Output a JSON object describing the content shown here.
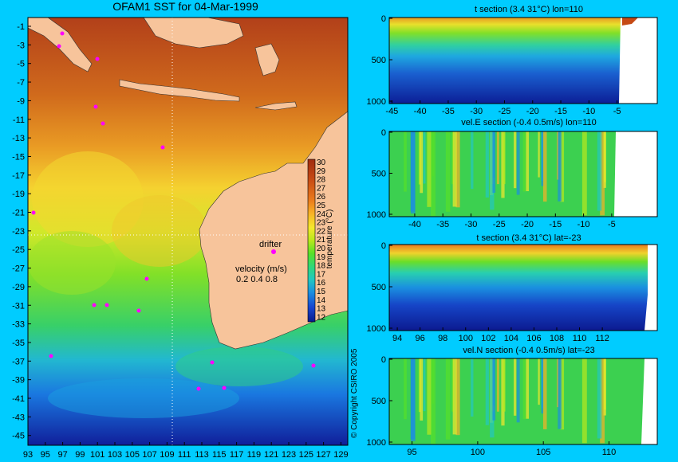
{
  "map": {
    "title": "OFAM1 SST for 04-Mar-1999",
    "lat_ticks": [
      "-1",
      "-3",
      "-5",
      "-7",
      "-9",
      "-11",
      "-13",
      "-15",
      "-17",
      "-19",
      "-21",
      "-23",
      "-25",
      "-27",
      "-29",
      "-31",
      "-33",
      "-35",
      "-37",
      "-39",
      "-41",
      "-43",
      "-45"
    ],
    "lon_ticks": [
      "93",
      "95",
      "97",
      "99",
      "101",
      "103",
      "105",
      "107",
      "109",
      "111",
      "113",
      "115",
      "117",
      "119",
      "121",
      "123",
      "125",
      "127",
      "129"
    ],
    "colorbar_ticks": [
      "30",
      "29",
      "28",
      "27",
      "26",
      "25",
      "24",
      "23",
      "22",
      "21",
      "20",
      "19",
      "18",
      "17",
      "16",
      "15",
      "14",
      "13",
      "12"
    ],
    "colorbar_label": "temperature (°C)",
    "drifter_label": "drifter",
    "velocity_label": "velocity (m/s)",
    "velocity_scale": "0.2 0.4 0.8",
    "copyright": "© Copyright CSIRO 2005"
  },
  "colors": {
    "background": "#00ccff",
    "land": "#f7c49b",
    "drifter": "#ff00ff",
    "colorscale": [
      "#0a1a8c",
      "#1846d0",
      "#1b8ee0",
      "#22c8c0",
      "#30d878",
      "#56e02a",
      "#b8e81c",
      "#f4e82c",
      "#f8b026",
      "#ea7a1c",
      "#c64a14",
      "#a02c10"
    ]
  },
  "chart_data": [
    {
      "type": "heatmap",
      "title": "OFAM1 SST for 04-Mar-1999",
      "x_ticks": [
        93,
        95,
        97,
        99,
        101,
        103,
        105,
        107,
        109,
        111,
        113,
        115,
        117,
        119,
        121,
        123,
        125,
        127,
        129
      ],
      "y_ticks": [
        -1,
        -3,
        -5,
        -7,
        -9,
        -11,
        -13,
        -15,
        -17,
        -19,
        -21,
        -23,
        -25,
        -27,
        -29,
        -31,
        -33,
        -35,
        -37,
        -39,
        -41,
        -43,
        -45
      ],
      "colorbar_range": [
        12,
        30
      ],
      "colorbar_label": "temperature (°C)",
      "section_lines": {
        "lon": 110,
        "lat": -23
      }
    },
    {
      "type": "heatmap",
      "title": "t section (3.4     31°C) lon=110",
      "x_ticks": [
        -45,
        -40,
        -35,
        -30,
        -25,
        -20,
        -15,
        -10,
        -5
      ],
      "y_ticks": [
        0,
        500,
        1000
      ]
    },
    {
      "type": "heatmap",
      "title": "vel.E section (-0.4     0.5m/s) lon=110",
      "x_ticks": [
        -40,
        -35,
        -30,
        -25,
        -20,
        -15,
        -10,
        -5
      ],
      "y_ticks": [
        0,
        500,
        1000
      ]
    },
    {
      "type": "heatmap",
      "title": "t section (3.4     31°C) lat=-23",
      "x_ticks": [
        94,
        96,
        98,
        100,
        102,
        104,
        106,
        108,
        110,
        112
      ],
      "y_ticks": [
        0,
        500,
        1000
      ]
    },
    {
      "type": "heatmap",
      "title": "vel.N section (-0.4     0.5m/s) lat=-23",
      "x_ticks": [
        95,
        100,
        105,
        110
      ],
      "y_ticks": [
        0,
        500,
        1000
      ]
    }
  ],
  "panels": [
    {
      "title": "t section (3.4     31°C) lon=110",
      "x_labels": [
        "-45",
        "-40",
        "-35",
        "-30",
        "-25",
        "-20",
        "-15",
        "-10",
        "-5"
      ],
      "y_labels": [
        "0",
        "500",
        "1000"
      ]
    },
    {
      "title": "vel.E section (-0.4     0.5m/s) lon=110",
      "x_labels": [
        "-40",
        "-35",
        "-30",
        "-25",
        "-20",
        "-15",
        "-10",
        "-5"
      ],
      "y_labels": [
        "0",
        "500",
        "1000"
      ]
    },
    {
      "title": "t section (3.4     31°C) lat=-23",
      "x_labels": [
        "94",
        "96",
        "98",
        "100",
        "102",
        "104",
        "106",
        "108",
        "110",
        "112"
      ],
      "y_labels": [
        "0",
        "500",
        "1000"
      ]
    },
    {
      "title": "vel.N section (-0.4     0.5m/s) lat=-23",
      "x_labels": [
        "95",
        "100",
        "105",
        "110"
      ],
      "y_labels": [
        "0",
        "500",
        "1000"
      ]
    }
  ]
}
